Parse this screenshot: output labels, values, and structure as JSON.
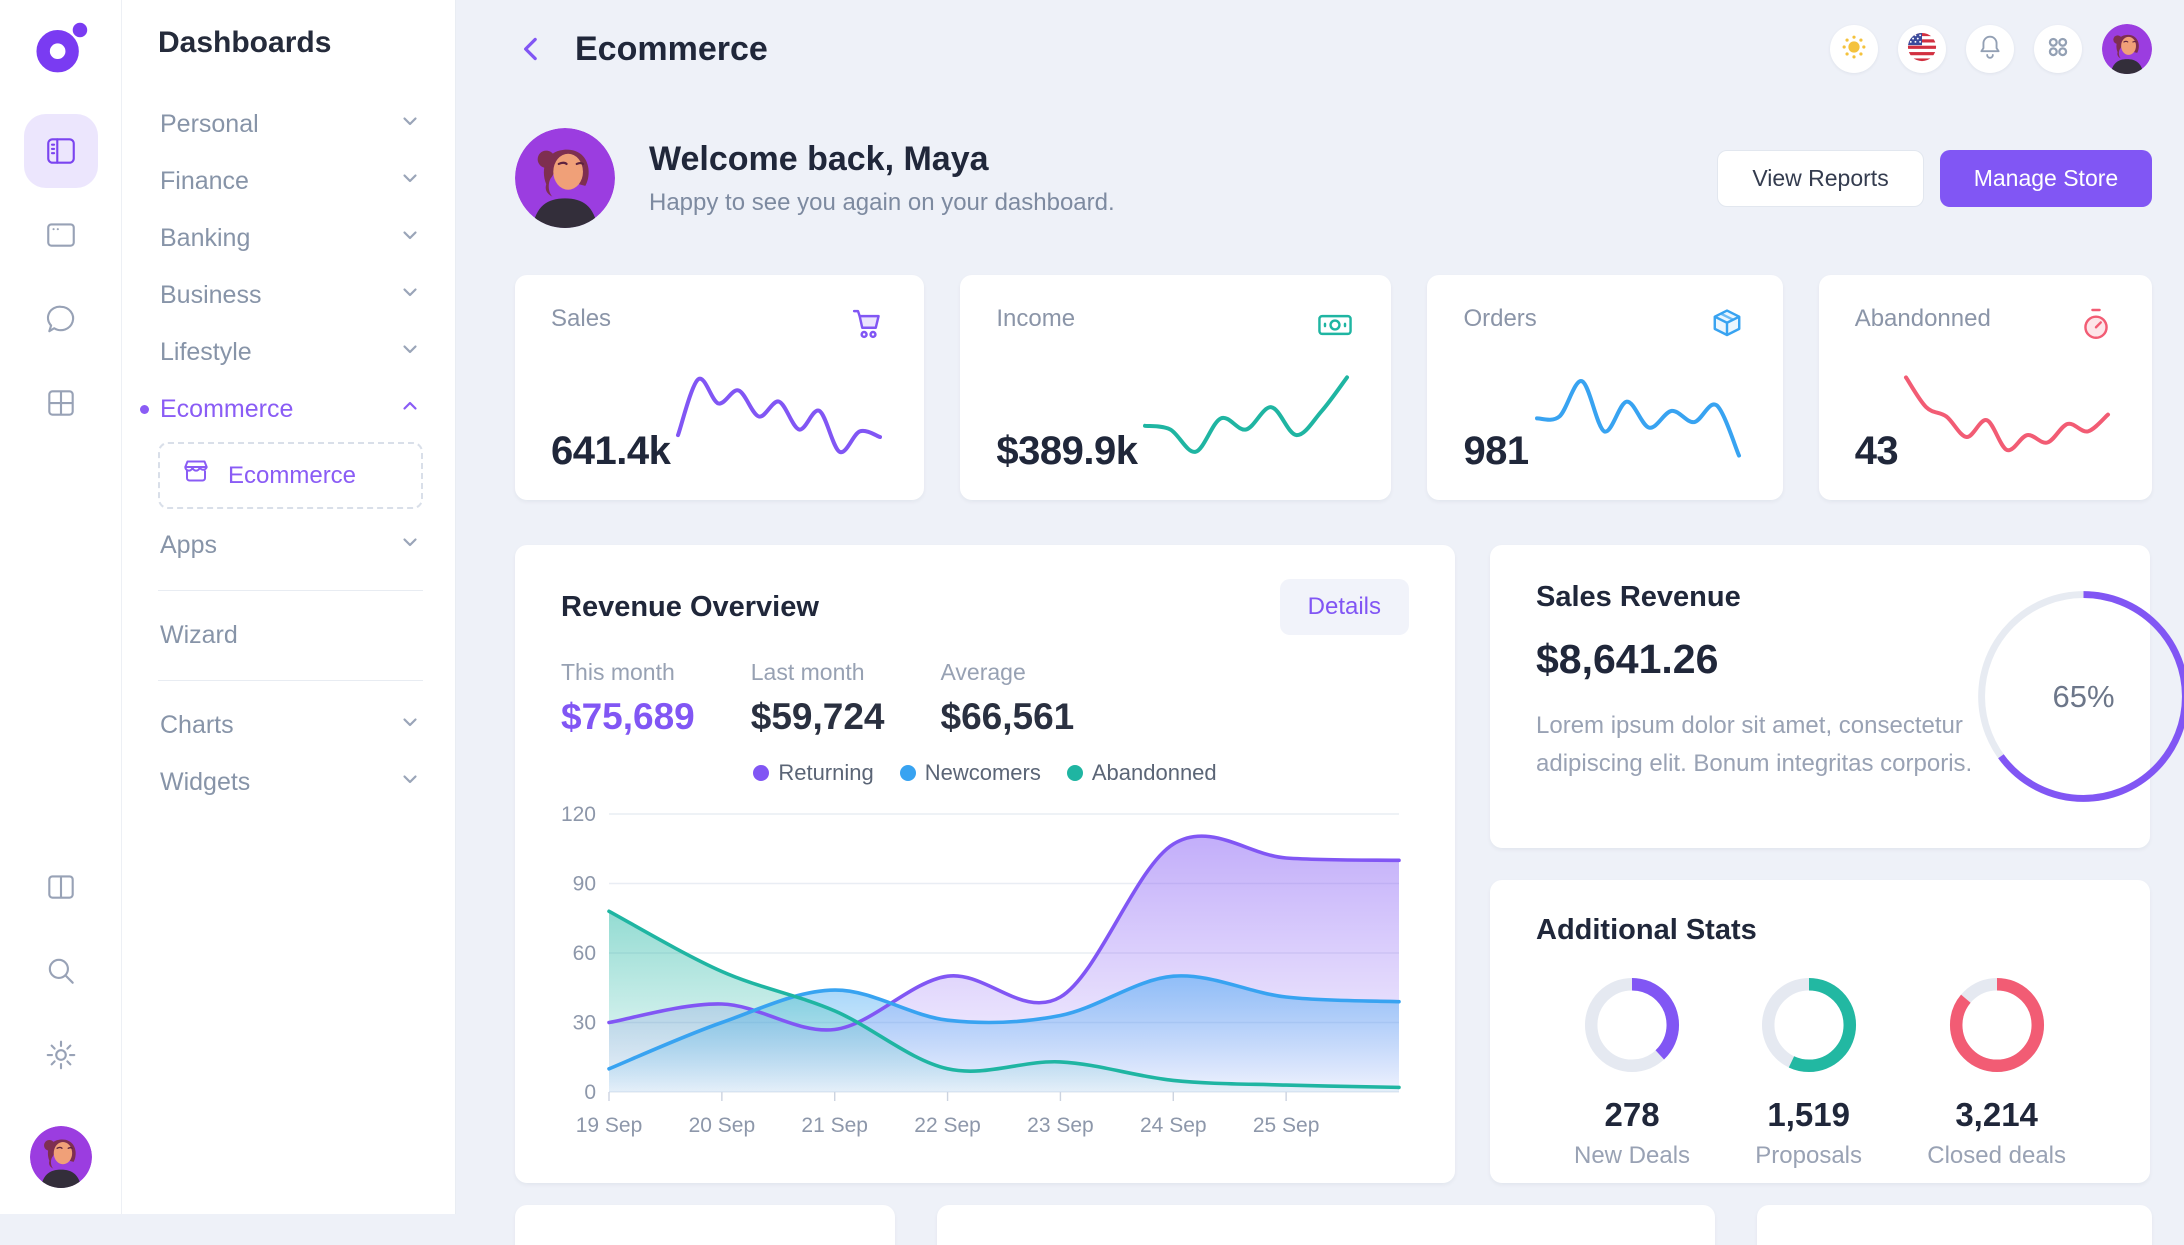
{
  "theme": {
    "accent": "#8156f4",
    "teal": "#1fb5a2",
    "blue": "#38a3f1",
    "red": "#f25c74",
    "bg": "#eef1f8"
  },
  "rail": {
    "top": [
      {
        "icon": "sidebar-layout-icon",
        "active": true
      },
      {
        "icon": "window-icon",
        "active": false
      },
      {
        "icon": "chat-icon",
        "active": false
      },
      {
        "icon": "grid-icon",
        "active": false
      }
    ],
    "bottom": [
      {
        "icon": "columns-icon"
      },
      {
        "icon": "search-icon"
      },
      {
        "icon": "gear-icon"
      }
    ]
  },
  "sidebar": {
    "title": "Dashboards",
    "items": [
      {
        "type": "item",
        "label": "Personal",
        "chevron": "down"
      },
      {
        "type": "item",
        "label": "Finance",
        "chevron": "down"
      },
      {
        "type": "item",
        "label": "Banking",
        "chevron": "down"
      },
      {
        "type": "item",
        "label": "Business",
        "chevron": "down"
      },
      {
        "type": "item",
        "label": "Lifestyle",
        "chevron": "down"
      },
      {
        "type": "item",
        "label": "Ecommerce",
        "chevron": "up",
        "active": true,
        "dot": true
      },
      {
        "type": "subitem",
        "label": "Ecommerce",
        "icon": "store-icon"
      },
      {
        "type": "item",
        "label": "Apps",
        "chevron": "down"
      },
      {
        "type": "divider"
      },
      {
        "type": "item",
        "label": "Wizard"
      },
      {
        "type": "divider"
      },
      {
        "type": "item",
        "label": "Charts",
        "chevron": "down"
      },
      {
        "type": "item",
        "label": "Widgets",
        "chevron": "down"
      }
    ]
  },
  "header": {
    "title": "Ecommerce",
    "actions": [
      "sun-icon",
      "flag-us-icon",
      "bell-icon",
      "apps-grid-icon",
      "avatar"
    ]
  },
  "welcome": {
    "title": "Welcome back, Maya",
    "subtitle": "Happy to see you again on your dashboard.",
    "view_reports": "View Reports",
    "manage_store": "Manage Store"
  },
  "stat_cards": [
    {
      "label": "Sales",
      "value": "641.4k",
      "icon": "cart-icon",
      "color": "#8156f4",
      "spark": [
        70,
        10,
        36,
        22,
        50,
        34,
        64,
        44,
        88,
        66,
        72
      ]
    },
    {
      "label": "Income",
      "value": "$389.9k",
      "icon": "banknote-icon",
      "color": "#1fb5a2",
      "spark": [
        60,
        64,
        88,
        52,
        64,
        40,
        70,
        44,
        8
      ]
    },
    {
      "label": "Orders",
      "value": "981",
      "icon": "box-icon",
      "color": "#38a3f1",
      "spark": [
        52,
        50,
        12,
        66,
        34,
        62,
        44,
        56,
        38,
        92
      ]
    },
    {
      "label": "Abandonned",
      "value": "43",
      "icon": "stopwatch-icon",
      "color": "#f25c74",
      "spark": [
        8,
        40,
        50,
        72,
        54,
        86,
        70,
        78,
        58,
        66,
        48
      ]
    }
  ],
  "chart_data": {
    "type": "area",
    "title": "Revenue Overview",
    "details_label": "Details",
    "stats": [
      {
        "label": "This month",
        "value": "$75,689",
        "highlight": true
      },
      {
        "label": "Last month",
        "value": "$59,724",
        "highlight": false
      },
      {
        "label": "Average",
        "value": "$66,561",
        "highlight": false
      }
    ],
    "categories": [
      "19 Sep",
      "20 Sep",
      "21 Sep",
      "22 Sep",
      "23 Sep",
      "24 Sep",
      "25 Sep"
    ],
    "series": [
      {
        "name": "Returning",
        "color": "#8156f4",
        "values": [
          30,
          38,
          27,
          50,
          41,
          107,
          101,
          100
        ]
      },
      {
        "name": "Newcomers",
        "color": "#38a3f1",
        "values": [
          10,
          30,
          44,
          31,
          33,
          50,
          41,
          39
        ]
      },
      {
        "name": "Abandonned",
        "color": "#1fb5a2",
        "values": [
          78,
          52,
          35,
          10,
          13,
          5,
          3,
          2
        ]
      }
    ],
    "ylim": [
      0,
      120
    ],
    "yticks": [
      0,
      30,
      60,
      90,
      120
    ],
    "legend_position": "top",
    "grid": true
  },
  "sales_revenue": {
    "title": "Sales Revenue",
    "value": "$8,641.26",
    "description": "Lorem ipsum dolor sit amet, consectetur adipiscing elit. Bonum integritas corporis.",
    "percent": 65,
    "percent_label": "65%",
    "color": "#8156f4",
    "track": "#e7ebf2"
  },
  "additional_stats": {
    "title": "Additional Stats",
    "items": [
      {
        "value": "278",
        "label": "New Deals",
        "percent": 38,
        "color": "#8156f4"
      },
      {
        "value": "1,519",
        "label": "Proposals",
        "percent": 57,
        "color": "#22b8a2"
      },
      {
        "value": "3,214",
        "label": "Closed deals",
        "percent": 86,
        "color": "#f25c74"
      }
    ],
    "track": "#e5e9f1"
  }
}
